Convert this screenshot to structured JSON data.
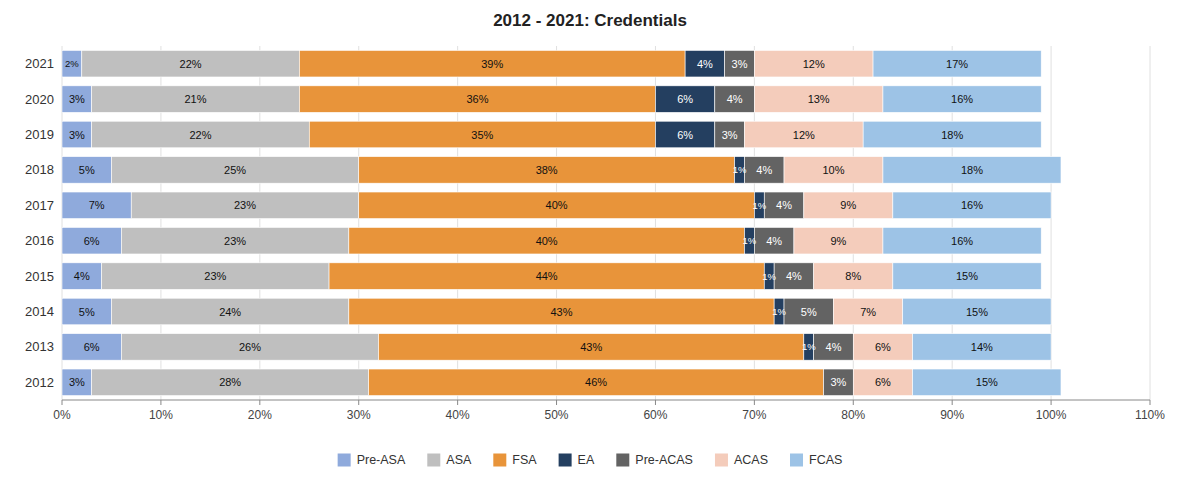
{
  "chart_data": {
    "type": "bar",
    "orientation": "horizontal",
    "stacked": true,
    "title": "2012 - 2021: Credentials",
    "categories": [
      "2021",
      "2020",
      "2019",
      "2018",
      "2017",
      "2016",
      "2015",
      "2014",
      "2013",
      "2012"
    ],
    "series": [
      {
        "name": "Pre-ASA",
        "color": "#8FAADC",
        "values": [
          2,
          3,
          3,
          5,
          7,
          6,
          4,
          5,
          6,
          3
        ],
        "value_labels": [
          "2%",
          "3%",
          "3%",
          "5%",
          "7%",
          "6%",
          "4%",
          "5%",
          "6%",
          "3%"
        ]
      },
      {
        "name": "ASA",
        "color": "#BFBFBF",
        "values": [
          22,
          21,
          22,
          25,
          23,
          23,
          23,
          24,
          26,
          28
        ],
        "value_labels": [
          "22%",
          "21%",
          "22%",
          "25%",
          "23%",
          "23%",
          "23%",
          "24%",
          "26%",
          "28%"
        ]
      },
      {
        "name": "FSA",
        "color": "#E8943A",
        "values": [
          39,
          36,
          35,
          38,
          40,
          40,
          44,
          43,
          43,
          46
        ],
        "value_labels": [
          "39%",
          "36%",
          "35%",
          "38%",
          "40%",
          "40%",
          "44%",
          "43%",
          "43%",
          "46%"
        ]
      },
      {
        "name": "EA",
        "color": "#243F60",
        "values": [
          4,
          6,
          6,
          1,
          1,
          1,
          1,
          1,
          1,
          0
        ],
        "value_labels": [
          "4%",
          "6%",
          "6%",
          "1%",
          "1%",
          "1%",
          "1%",
          "1%",
          "1%",
          null
        ]
      },
      {
        "name": "Pre-ACAS",
        "color": "#636363",
        "values": [
          3,
          4,
          3,
          4,
          4,
          4,
          4,
          5,
          4,
          3
        ],
        "value_labels": [
          "3%",
          "4%",
          "3%",
          "4%",
          "4%",
          "4%",
          "4%",
          "5%",
          "4%",
          "3%"
        ]
      },
      {
        "name": "ACAS",
        "color": "#F4CCBB",
        "values": [
          12,
          13,
          12,
          10,
          9,
          9,
          8,
          7,
          6,
          6
        ],
        "value_labels": [
          "12%",
          "13%",
          "12%",
          "10%",
          "9%",
          "9%",
          "8%",
          "7%",
          "6%",
          "6%"
        ]
      },
      {
        "name": "FCAS",
        "color": "#9DC3E6",
        "values": [
          17,
          16,
          18,
          18,
          16,
          16,
          15,
          15,
          14,
          15
        ],
        "value_labels": [
          "17%",
          "16%",
          "18%",
          "18%",
          "16%",
          "16%",
          "15%",
          "15%",
          "14%",
          "15%"
        ]
      }
    ],
    "xlim": [
      0,
      110
    ],
    "xticks": [
      {
        "value": 0,
        "label": "0%"
      },
      {
        "value": 10,
        "label": "10%"
      },
      {
        "value": 20,
        "label": "20%"
      },
      {
        "value": 30,
        "label": "30%"
      },
      {
        "value": 40,
        "label": "40%"
      },
      {
        "value": 50,
        "label": "50%"
      },
      {
        "value": 60,
        "label": "60%"
      },
      {
        "value": 70,
        "label": "70%"
      },
      {
        "value": 80,
        "label": "80%"
      },
      {
        "value": 90,
        "label": "90%"
      },
      {
        "value": 100,
        "label": "100%"
      },
      {
        "value": 110,
        "label": "110%"
      }
    ],
    "grid": true,
    "data_labels": true,
    "legend": "bottom"
  }
}
